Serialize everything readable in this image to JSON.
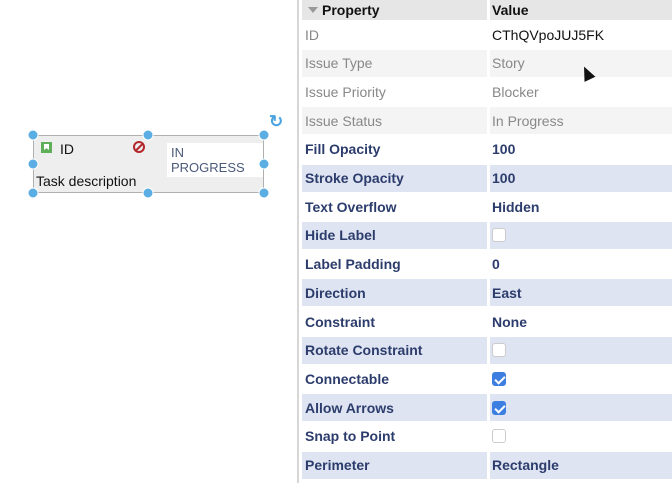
{
  "shape": {
    "id_label": "ID",
    "status": "IN PROGRESS",
    "description": "Task description"
  },
  "table": {
    "header": {
      "property": "Property",
      "value": "Value"
    },
    "rows": [
      {
        "label": "ID",
        "value": "CThQVpoJUJ5FK",
        "style": "gray"
      },
      {
        "label": "Issue Type",
        "value": "Story",
        "style": "gray"
      },
      {
        "label": "Issue Priority",
        "value": "Blocker",
        "style": "gray"
      },
      {
        "label": "Issue Status",
        "value": "In Progress",
        "style": "gray"
      },
      {
        "label": "Fill Opacity",
        "value": "100",
        "style": "bold"
      },
      {
        "label": "Stroke Opacity",
        "value": "100",
        "style": "bold"
      },
      {
        "label": "Text Overflow",
        "value": "Hidden",
        "style": "bold"
      },
      {
        "label": "Hide Label",
        "checkbox": false,
        "style": "bold"
      },
      {
        "label": "Label Padding",
        "value": "0",
        "style": "bold"
      },
      {
        "label": "Direction",
        "value": "East",
        "style": "bold"
      },
      {
        "label": "Constraint",
        "value": "None",
        "style": "bold"
      },
      {
        "label": "Rotate Constraint",
        "checkbox": false,
        "style": "bold"
      },
      {
        "label": "Connectable",
        "checkbox": true,
        "style": "bold"
      },
      {
        "label": "Allow Arrows",
        "checkbox": true,
        "style": "bold"
      },
      {
        "label": "Snap to Point",
        "checkbox": false,
        "style": "bold"
      },
      {
        "label": "Perimeter",
        "value": "Rectangle",
        "style": "bold"
      }
    ]
  },
  "colors": {
    "handle": "#5aaee3",
    "accent_text": "#2c3c6c",
    "row_blue": "#dee4f1",
    "checkbox_on": "#3d7fe0"
  }
}
